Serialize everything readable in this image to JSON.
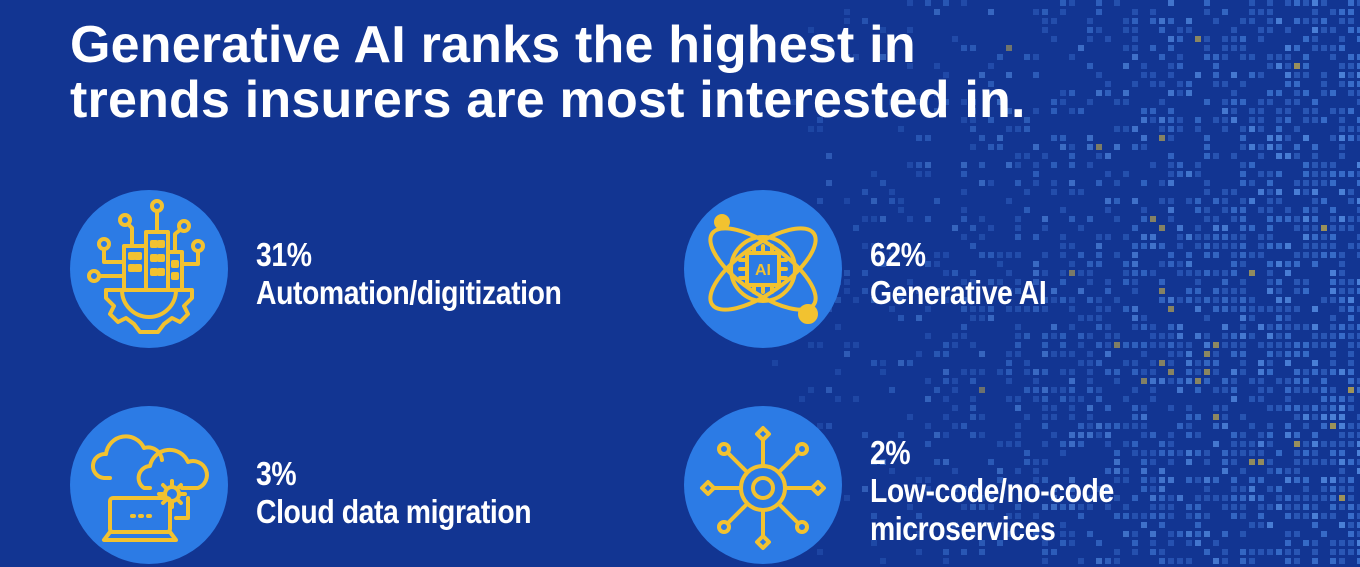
{
  "headline": {
    "line1": "Generative AI ranks the highest in",
    "line2": "trends insurers are most interested in."
  },
  "colors": {
    "background": "#123592",
    "circle": "#2c7be5",
    "icon": "#f2c230",
    "text": "#ffffff"
  },
  "items": [
    {
      "icon": "automation-icon",
      "percent": "31%",
      "label_lines": [
        "Automation/digitization"
      ]
    },
    {
      "icon": "generative-ai-icon",
      "percent": "62%",
      "label_lines": [
        "Generative AI"
      ],
      "chip_text": "AI"
    },
    {
      "icon": "cloud-migration-icon",
      "percent": "3%",
      "label_lines": [
        "Cloud data migration"
      ]
    },
    {
      "icon": "low-code-icon",
      "percent": "2%",
      "label_lines": [
        "Low-code/no-code",
        "microservices"
      ]
    }
  ]
}
